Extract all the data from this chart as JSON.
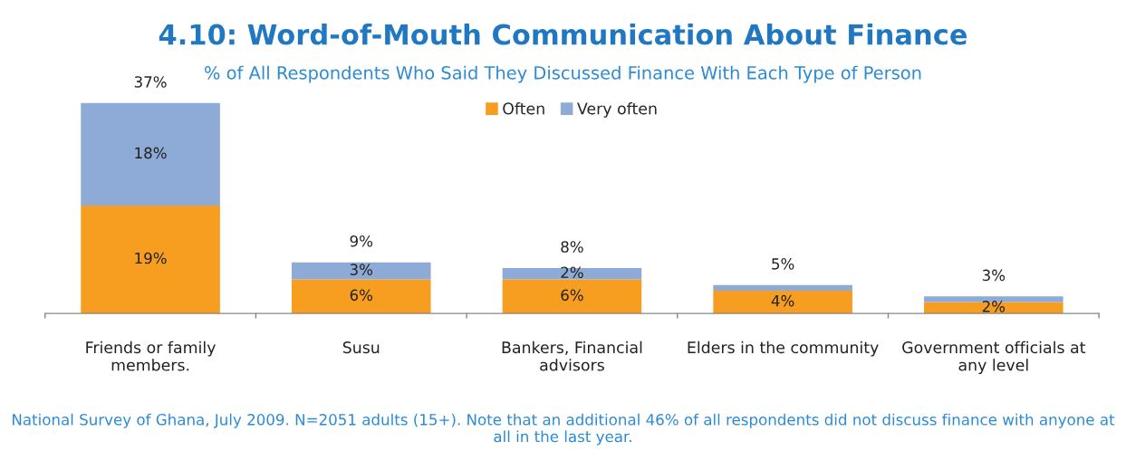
{
  "chart_data": {
    "type": "bar",
    "stacked": true,
    "title": "4.10: Word-of-Mouth Communication About Finance",
    "subtitle": "% of All Respondents Who Said They Discussed Finance With Each Type of Person",
    "categories": [
      "Friends or family\nmembers.",
      "Susu",
      "Bankers, Financial\nadvisors",
      "Elders in the community",
      "Government officials at\nany level"
    ],
    "series": [
      {
        "name": "Often",
        "color": "#f79d1f",
        "values": [
          19,
          6,
          6,
          4,
          2
        ],
        "value_labels": [
          "19%",
          "6%",
          "6%",
          "4%",
          "2%"
        ]
      },
      {
        "name": "Very often",
        "color": "#8eaad6",
        "values": [
          18,
          3,
          2,
          1,
          1
        ],
        "value_labels": [
          "18%",
          "3%",
          "2%",
          null,
          null
        ]
      }
    ],
    "totals": [
      "37%",
      "9%",
      "8%",
      "5%",
      "3%"
    ],
    "legend": "top",
    "grid": false,
    "annotations": [
      "National Survey of Ghana, July 2009. N=2051 adults (15+). Note that an additional 46% of all respondents did not discuss finance with anyone at all in the last year."
    ]
  }
}
